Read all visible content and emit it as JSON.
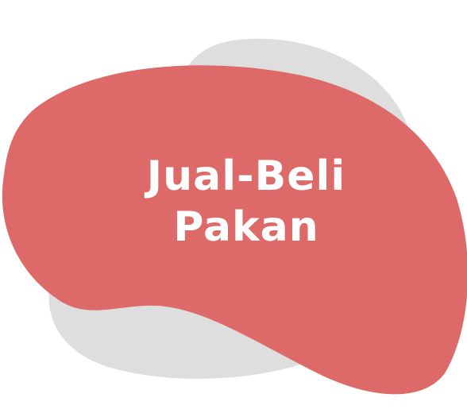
{
  "card": {
    "title_line1": "Jual-Beli",
    "title_line2": "Pakan"
  },
  "colors": {
    "primary_blob": "#dd6969",
    "back_blob": "#dedede",
    "text": "#ffffff"
  }
}
